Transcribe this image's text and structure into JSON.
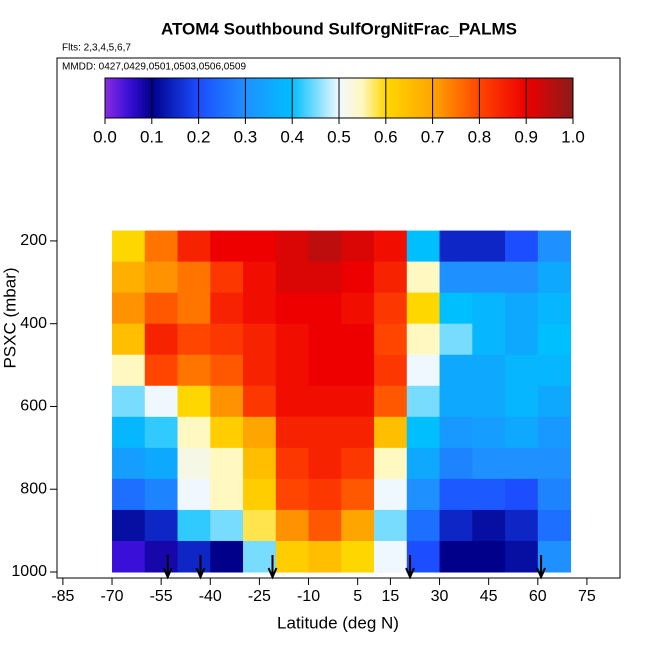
{
  "chart_data": {
    "type": "heatmap",
    "title": "ATOM4 Southbound SulfOrgNitFrac_PALMS",
    "subtitle": "Flts: 2,3,4,5,6,7",
    "annotation": "MMDD: 0427,0429,0501,0503,0506,0509",
    "x_label": "Latitude (deg N)",
    "y_label": "PSXC (mbar)",
    "xlim": [
      -86.8,
      85.1
    ],
    "xticks": [
      -85,
      -70,
      -55,
      -40,
      -25,
      -10,
      5,
      15,
      30,
      45,
      60,
      75
    ],
    "ylim": [
      1014.5,
      -242
    ],
    "yticks": [
      200,
      400,
      600,
      800,
      1000
    ],
    "x_edges": [
      -70,
      -60,
      -50,
      -40,
      -30,
      -20,
      -10,
      0,
      10,
      20,
      30,
      40,
      50,
      60,
      70
    ],
    "y_edges": [
      175,
      250,
      325,
      400,
      475,
      550,
      625,
      700,
      775,
      850,
      925,
      1000
    ],
    "values": [
      [
        0.6,
        0.75,
        0.85,
        0.9,
        0.9,
        0.92,
        0.95,
        0.92,
        0.88,
        0.4,
        0.15,
        0.15,
        0.2,
        0.3
      ],
      [
        0.68,
        0.72,
        0.75,
        0.82,
        0.88,
        0.92,
        0.92,
        0.9,
        0.85,
        0.55,
        0.3,
        0.3,
        0.3,
        0.35
      ],
      [
        0.72,
        0.78,
        0.75,
        0.85,
        0.88,
        0.9,
        0.9,
        0.88,
        0.82,
        0.6,
        0.4,
        0.38,
        0.35,
        0.38
      ],
      [
        0.65,
        0.85,
        0.8,
        0.82,
        0.85,
        0.88,
        0.9,
        0.9,
        0.8,
        0.55,
        0.45,
        0.38,
        0.35,
        0.4
      ],
      [
        0.55,
        0.8,
        0.75,
        0.78,
        0.85,
        0.88,
        0.9,
        0.9,
        0.82,
        0.5,
        0.35,
        0.35,
        0.38,
        0.38
      ],
      [
        0.45,
        0.5,
        0.6,
        0.72,
        0.82,
        0.88,
        0.88,
        0.88,
        0.78,
        0.45,
        0.35,
        0.35,
        0.38,
        0.35
      ],
      [
        0.38,
        0.42,
        0.55,
        0.62,
        0.7,
        0.85,
        0.85,
        0.85,
        0.65,
        0.4,
        0.32,
        0.33,
        0.35,
        0.32
      ],
      [
        0.33,
        0.35,
        0.52,
        0.55,
        0.65,
        0.82,
        0.85,
        0.82,
        0.55,
        0.35,
        0.28,
        0.3,
        0.3,
        0.3
      ],
      [
        0.25,
        0.28,
        0.5,
        0.55,
        0.62,
        0.8,
        0.82,
        0.78,
        0.5,
        0.3,
        0.22,
        0.22,
        0.2,
        0.28
      ],
      [
        0.12,
        0.15,
        0.42,
        0.45,
        0.58,
        0.72,
        0.78,
        0.7,
        0.45,
        0.25,
        0.15,
        0.12,
        0.15,
        0.25
      ],
      [
        0.05,
        0.08,
        0.15,
        0.1,
        0.45,
        0.62,
        0.65,
        0.6,
        0.5,
        0.2,
        0.1,
        0.1,
        0.12,
        0.3
      ]
    ],
    "arrows_x": [
      -53,
      -43,
      -21,
      21,
      61
    ],
    "colorbar_ticks": [
      {
        "value": 0,
        "label": "0.0"
      },
      0.1,
      0.2,
      0.3,
      0.4,
      0.5,
      0.6,
      0.7,
      0.8,
      0.9,
      {
        "value": 1,
        "label": "1.0"
      }
    ],
    "colormap": [
      {
        "value": 0,
        "color": "#8a2be2"
      },
      {
        "value": 0.05,
        "color": "#3a10d8"
      },
      {
        "value": 0.1,
        "color": "#00008b"
      },
      {
        "value": 0.2,
        "color": "#1c4dff"
      },
      {
        "value": 0.3,
        "color": "#1e90ff"
      },
      {
        "value": 0.4,
        "color": "#00bfff"
      },
      {
        "value": 0.5,
        "color": "#f0f8ff"
      },
      {
        "value": 0.55,
        "color": "#fff8c0"
      },
      {
        "value": 0.6,
        "color": "#ffd700"
      },
      {
        "value": 0.7,
        "color": "#ffa500"
      },
      {
        "value": 0.8,
        "color": "#ff4500"
      },
      {
        "value": 0.9,
        "color": "#ee0000"
      },
      {
        "value": 1,
        "color": "#8b1a1a"
      }
    ]
  }
}
